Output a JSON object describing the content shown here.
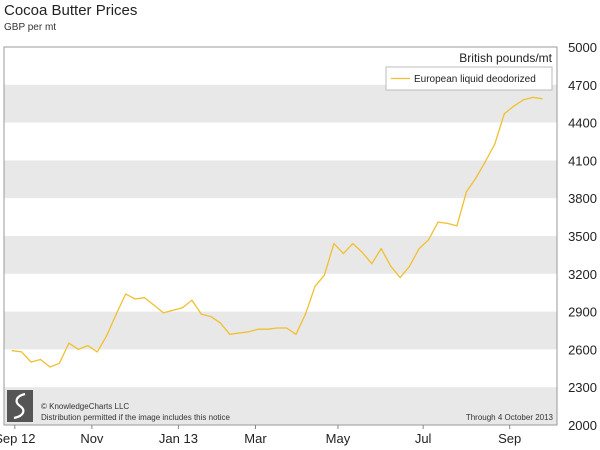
{
  "title": "Cocoa Butter Prices",
  "subtitle": "GBP per mt",
  "chart_data": {
    "type": "line",
    "title": "Cocoa Butter Prices",
    "subtitle": "GBP per mt",
    "ylabel": "British pounds/mt",
    "ylim": [
      2000,
      5000
    ],
    "y_ticks": [
      2000,
      2300,
      2600,
      2900,
      3200,
      3500,
      3800,
      4100,
      4400,
      4700,
      5000
    ],
    "x_tick_labels": [
      "Sep 12",
      "Nov",
      "Jan 13",
      "Mar",
      "May",
      "Jul",
      "Sep"
    ],
    "grid": "alternating horizontal bands",
    "legend_position": "top-right",
    "x_range": [
      "2012-09-01",
      "2013-10-15"
    ],
    "series": [
      {
        "name": "European liquid deodorized",
        "color": "#f0c030",
        "points": [
          [
            "2012-09-07",
            2590
          ],
          [
            "2012-09-14",
            2580
          ],
          [
            "2012-09-21",
            2500
          ],
          [
            "2012-09-28",
            2520
          ],
          [
            "2012-10-05",
            2460
          ],
          [
            "2012-10-12",
            2490
          ],
          [
            "2012-10-19",
            2650
          ],
          [
            "2012-10-26",
            2600
          ],
          [
            "2012-11-02",
            2630
          ],
          [
            "2012-11-09",
            2580
          ],
          [
            "2012-11-16",
            2710
          ],
          [
            "2012-11-23",
            2880
          ],
          [
            "2012-11-30",
            3040
          ],
          [
            "2012-12-07",
            3000
          ],
          [
            "2012-12-14",
            3010
          ],
          [
            "2012-12-21",
            2950
          ],
          [
            "2012-12-28",
            2890
          ],
          [
            "2013-01-04",
            2910
          ],
          [
            "2013-01-11",
            2930
          ],
          [
            "2013-01-18",
            2990
          ],
          [
            "2013-01-25",
            2880
          ],
          [
            "2013-02-01",
            2860
          ],
          [
            "2013-02-08",
            2810
          ],
          [
            "2013-02-15",
            2720
          ],
          [
            "2013-02-22",
            2730
          ],
          [
            "2013-03-01",
            2740
          ],
          [
            "2013-03-08",
            2760
          ],
          [
            "2013-03-15",
            2760
          ],
          [
            "2013-03-22",
            2770
          ],
          [
            "2013-03-29",
            2770
          ],
          [
            "2013-04-05",
            2720
          ],
          [
            "2013-04-12",
            2880
          ],
          [
            "2013-04-19",
            3100
          ],
          [
            "2013-04-26",
            3190
          ],
          [
            "2013-05-03",
            3440
          ],
          [
            "2013-05-10",
            3360
          ],
          [
            "2013-05-17",
            3440
          ],
          [
            "2013-05-24",
            3370
          ],
          [
            "2013-05-31",
            3280
          ],
          [
            "2013-06-07",
            3400
          ],
          [
            "2013-06-14",
            3260
          ],
          [
            "2013-06-21",
            3170
          ],
          [
            "2013-06-28",
            3260
          ],
          [
            "2013-07-05",
            3400
          ],
          [
            "2013-07-12",
            3470
          ],
          [
            "2013-07-19",
            3610
          ],
          [
            "2013-07-26",
            3600
          ],
          [
            "2013-08-02",
            3580
          ],
          [
            "2013-08-09",
            3850
          ],
          [
            "2013-08-16",
            3960
          ],
          [
            "2013-08-23",
            4090
          ],
          [
            "2013-08-30",
            4230
          ],
          [
            "2013-09-06",
            4470
          ],
          [
            "2013-09-13",
            4530
          ],
          [
            "2013-09-20",
            4580
          ],
          [
            "2013-09-27",
            4600
          ],
          [
            "2013-10-04",
            4590
          ]
        ]
      }
    ],
    "notices": {
      "copyright": "© KnowledgeCharts LLC",
      "distribution": "Distribution permitted if the image includes this notice",
      "through": "Through 4 October 2013"
    }
  }
}
